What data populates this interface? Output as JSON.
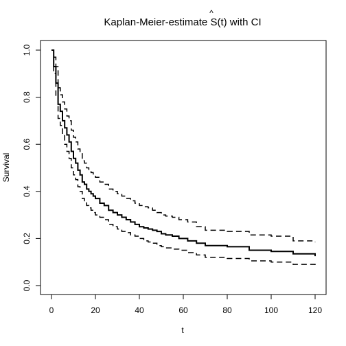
{
  "chart_data": {
    "type": "line",
    "title_text": "Kaplan-Meier-estimate S(t) with CI",
    "title_prefix": "Kaplan-Meier-estimate ",
    "title_symbol": "S",
    "title_hat": "^",
    "title_suffix": "(t) with CI",
    "xlabel": "t",
    "ylabel": "Survival",
    "xlim": [
      0,
      120
    ],
    "ylim": [
      0.0,
      1.0
    ],
    "x_ticks": [
      0,
      20,
      40,
      60,
      80,
      100,
      120
    ],
    "y_ticks": [
      0.0,
      0.2,
      0.4,
      0.6,
      0.8,
      1.0
    ],
    "x_tick_labels": [
      "0",
      "20",
      "40",
      "60",
      "80",
      "100",
      "120"
    ],
    "y_tick_labels": [
      "0.0",
      "0.2",
      "0.4",
      "0.6",
      "0.8",
      "1.0"
    ],
    "series": [
      {
        "role": "estimate",
        "line_style": "solid",
        "color": "#000000",
        "x": [
          0,
          1,
          2,
          3,
          4,
          5,
          6,
          7,
          8,
          9,
          10,
          11,
          12,
          13,
          14,
          15,
          16,
          17,
          18,
          19,
          20,
          22,
          24,
          26,
          28,
          30,
          32,
          34,
          36,
          38,
          40,
          42,
          44,
          46,
          48,
          50,
          52,
          55,
          58,
          62,
          66,
          70,
          80,
          90,
          100,
          110,
          120
        ],
        "y": [
          1.0,
          0.93,
          0.86,
          0.77,
          0.74,
          0.7,
          0.67,
          0.64,
          0.61,
          0.57,
          0.54,
          0.52,
          0.49,
          0.47,
          0.44,
          0.43,
          0.41,
          0.4,
          0.39,
          0.38,
          0.37,
          0.35,
          0.34,
          0.32,
          0.31,
          0.3,
          0.29,
          0.28,
          0.27,
          0.26,
          0.25,
          0.245,
          0.24,
          0.235,
          0.23,
          0.22,
          0.215,
          0.21,
          0.2,
          0.19,
          0.18,
          0.17,
          0.165,
          0.15,
          0.145,
          0.135,
          0.125
        ]
      },
      {
        "role": "upper-ci",
        "line_style": "dashed",
        "color": "#000000",
        "x": [
          0,
          1,
          2,
          3,
          4,
          5,
          6,
          7,
          8,
          9,
          10,
          11,
          12,
          13,
          14,
          15,
          16,
          17,
          18,
          19,
          20,
          22,
          24,
          26,
          28,
          30,
          32,
          34,
          36,
          38,
          40,
          42,
          44,
          46,
          48,
          50,
          52,
          55,
          58,
          62,
          66,
          70,
          80,
          90,
          100,
          110,
          120
        ],
        "y": [
          1.0,
          0.97,
          0.93,
          0.84,
          0.81,
          0.78,
          0.75,
          0.72,
          0.7,
          0.66,
          0.63,
          0.61,
          0.58,
          0.56,
          0.53,
          0.52,
          0.5,
          0.49,
          0.48,
          0.47,
          0.46,
          0.44,
          0.43,
          0.41,
          0.4,
          0.39,
          0.38,
          0.37,
          0.36,
          0.35,
          0.34,
          0.335,
          0.33,
          0.32,
          0.31,
          0.3,
          0.295,
          0.29,
          0.28,
          0.27,
          0.25,
          0.235,
          0.23,
          0.215,
          0.21,
          0.19,
          0.185
        ]
      },
      {
        "role": "lower-ci",
        "line_style": "dashed",
        "color": "#000000",
        "x": [
          0,
          1,
          2,
          3,
          4,
          5,
          6,
          7,
          8,
          9,
          10,
          11,
          12,
          13,
          14,
          15,
          16,
          17,
          18,
          19,
          20,
          22,
          24,
          26,
          28,
          30,
          32,
          34,
          36,
          38,
          40,
          42,
          44,
          46,
          48,
          50,
          52,
          55,
          58,
          62,
          66,
          70,
          80,
          90,
          100,
          110,
          120
        ],
        "y": [
          1.0,
          0.9,
          0.8,
          0.71,
          0.68,
          0.64,
          0.6,
          0.57,
          0.54,
          0.5,
          0.47,
          0.45,
          0.42,
          0.4,
          0.37,
          0.36,
          0.34,
          0.33,
          0.32,
          0.31,
          0.3,
          0.29,
          0.28,
          0.26,
          0.25,
          0.24,
          0.23,
          0.225,
          0.215,
          0.21,
          0.2,
          0.19,
          0.185,
          0.18,
          0.17,
          0.165,
          0.16,
          0.155,
          0.15,
          0.14,
          0.13,
          0.12,
          0.115,
          0.105,
          0.1,
          0.09,
          0.085
        ]
      }
    ]
  }
}
